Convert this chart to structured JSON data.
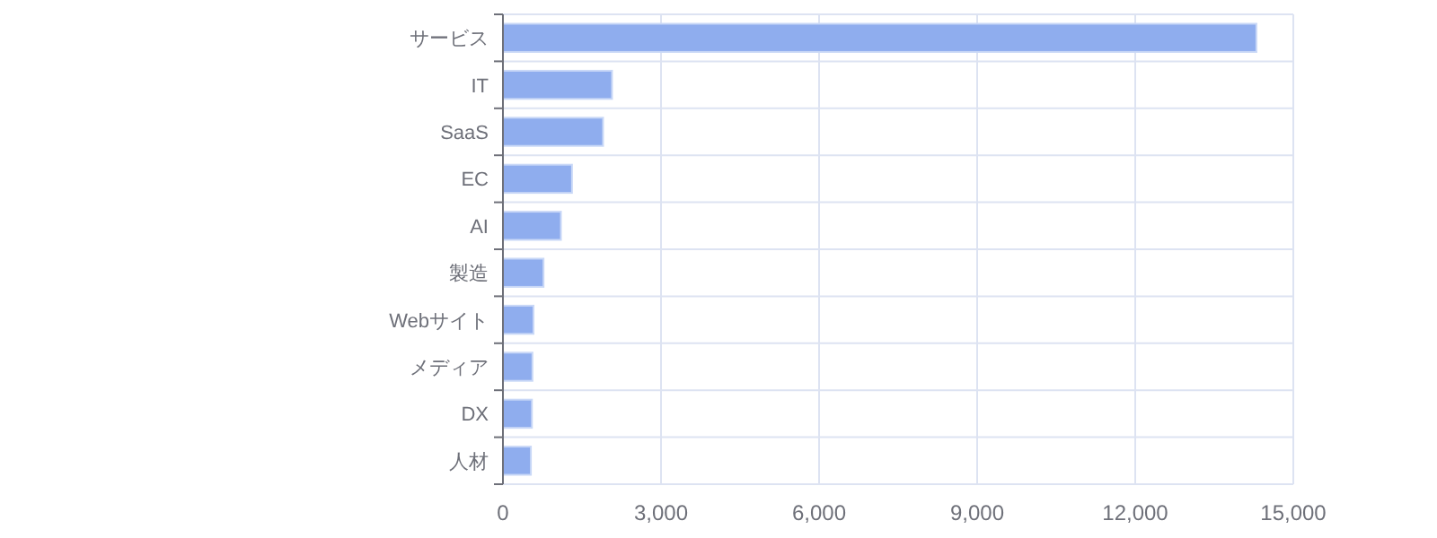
{
  "chart_data": {
    "type": "bar",
    "orientation": "horizontal",
    "categories": [
      "サービス",
      "IT",
      "SaaS",
      "EC",
      "AI",
      "製造",
      "Webサイト",
      "メディア",
      "DX",
      "人材"
    ],
    "values": [
      14300,
      2070,
      1900,
      1310,
      1100,
      770,
      580,
      560,
      550,
      530
    ],
    "color": "#8fadee",
    "xlim": [
      0,
      15000
    ],
    "xticks": [
      {
        "value": 0,
        "label": "0"
      },
      {
        "value": 3000,
        "label": "3,000"
      },
      {
        "value": 6000,
        "label": "6,000"
      },
      {
        "value": 9000,
        "label": "9,000"
      },
      {
        "value": 12000,
        "label": "12,000"
      },
      {
        "value": 15000,
        "label": "15,000"
      }
    ],
    "grid": true
  }
}
